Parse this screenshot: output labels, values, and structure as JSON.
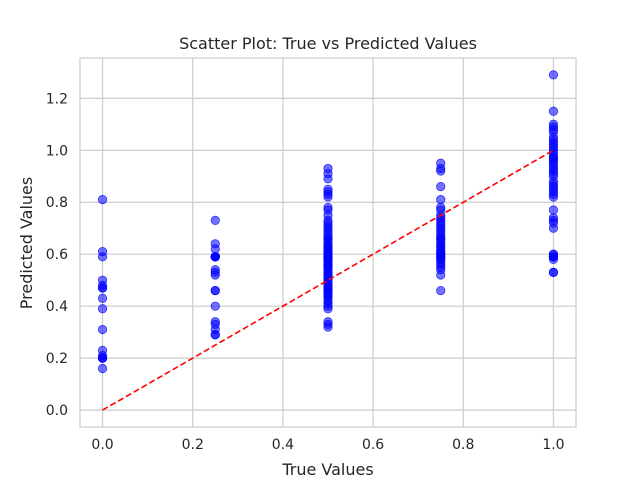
{
  "chart_data": {
    "type": "scatter",
    "title": "Scatter Plot: True vs Predicted Values",
    "xlabel": "True Values",
    "ylabel": "Predicted Values",
    "xlim": [
      -0.05,
      1.05
    ],
    "ylim": [
      -0.065,
      1.355
    ],
    "xticks": [
      0.0,
      0.2,
      0.4,
      0.6,
      0.8,
      1.0
    ],
    "yticks": [
      0.0,
      0.2,
      0.4,
      0.6,
      0.8,
      1.0,
      1.2
    ],
    "xtick_labels": [
      "0.0",
      "0.2",
      "0.4",
      "0.6",
      "0.8",
      "1.0"
    ],
    "ytick_labels": [
      "0.0",
      "0.2",
      "0.4",
      "0.6",
      "0.8",
      "1.0",
      "1.2"
    ],
    "grid": true,
    "point_color": "#0000ff",
    "point_alpha": 0.55,
    "line_color": "#ff0000",
    "reference_line": {
      "style": "dashed",
      "x": [
        0,
        1
      ],
      "y": [
        0,
        1
      ]
    },
    "points": {
      "x": [
        0,
        0,
        0,
        0,
        0,
        0,
        0,
        0,
        0,
        0,
        0,
        0,
        0,
        0,
        0,
        0,
        0.25,
        0.25,
        0.25,
        0.25,
        0.25,
        0.25,
        0.25,
        0.25,
        0.25,
        0.25,
        0.25,
        0.25,
        0.25,
        0.25,
        0.25,
        0.25,
        0.25,
        0.25,
        0.25,
        0.25,
        0.5,
        0.5,
        0.5,
        0.5,
        0.5,
        0.5,
        0.5,
        0.5,
        0.5,
        0.5,
        0.5,
        0.5,
        0.5,
        0.5,
        0.5,
        0.5,
        0.5,
        0.5,
        0.5,
        0.5,
        0.5,
        0.5,
        0.5,
        0.5,
        0.5,
        0.5,
        0.5,
        0.5,
        0.5,
        0.5,
        0.5,
        0.5,
        0.5,
        0.5,
        0.5,
        0.5,
        0.5,
        0.5,
        0.5,
        0.5,
        0.5,
        0.5,
        0.5,
        0.5,
        0.5,
        0.5,
        0.5,
        0.5,
        0.5,
        0.5,
        0.5,
        0.5,
        0.5,
        0.5,
        0.5,
        0.5,
        0.5,
        0.5,
        0.5,
        0.5,
        0.5,
        0.5,
        0.5,
        0.5,
        0.5,
        0.5,
        0.75,
        0.75,
        0.75,
        0.75,
        0.75,
        0.75,
        0.75,
        0.75,
        0.75,
        0.75,
        0.75,
        0.75,
        0.75,
        0.75,
        0.75,
        0.75,
        0.75,
        0.75,
        0.75,
        0.75,
        0.75,
        0.75,
        0.75,
        0.75,
        0.75,
        0.75,
        0.75,
        0.75,
        0.75,
        0.75,
        0.75,
        0.75,
        0.75,
        0.75,
        0.75,
        0.75,
        0.75,
        1,
        1,
        1,
        1,
        1,
        1,
        1,
        1,
        1,
        1,
        1,
        1,
        1,
        1,
        1,
        1,
        1,
        1,
        1,
        1,
        1,
        1,
        1,
        1,
        1,
        1,
        1,
        1,
        1,
        1,
        1,
        1,
        1,
        1,
        1,
        1,
        1,
        1,
        1,
        1,
        1,
        1,
        1,
        1
      ],
      "y": [
        0.81,
        0.61,
        0.59,
        0.5,
        0.48,
        0.47,
        0.43,
        0.39,
        0.31,
        0.23,
        0.21,
        0.2,
        0.2,
        0.16,
        0.2,
        0.47,
        0.73,
        0.64,
        0.62,
        0.59,
        0.59,
        0.59,
        0.59,
        0.54,
        0.53,
        0.52,
        0.46,
        0.46,
        0.4,
        0.34,
        0.33,
        0.31,
        0.29,
        0.29,
        0.59,
        0.59,
        0.93,
        0.91,
        0.89,
        0.85,
        0.84,
        0.83,
        0.82,
        0.78,
        0.77,
        0.75,
        0.73,
        0.72,
        0.7,
        0.69,
        0.68,
        0.67,
        0.66,
        0.65,
        0.64,
        0.63,
        0.62,
        0.61,
        0.6,
        0.59,
        0.58,
        0.57,
        0.56,
        0.55,
        0.54,
        0.53,
        0.52,
        0.51,
        0.5,
        0.49,
        0.48,
        0.47,
        0.46,
        0.45,
        0.44,
        0.43,
        0.42,
        0.41,
        0.4,
        0.39,
        0.34,
        0.33,
        0.32,
        0.59,
        0.59,
        0.6,
        0.57,
        0.58,
        0.55,
        0.61,
        0.62,
        0.5,
        0.52,
        0.48,
        0.44,
        0.46,
        0.63,
        0.66,
        0.71,
        0.56,
        0.53,
        0.47,
        0.95,
        0.93,
        0.92,
        0.86,
        0.81,
        0.78,
        0.77,
        0.75,
        0.74,
        0.73,
        0.72,
        0.71,
        0.7,
        0.69,
        0.68,
        0.67,
        0.66,
        0.65,
        0.64,
        0.63,
        0.62,
        0.61,
        0.6,
        0.59,
        0.58,
        0.57,
        0.56,
        0.55,
        0.54,
        0.52,
        0.46,
        0.59,
        0.6,
        0.58,
        0.61,
        0.63,
        0.66,
        1.29,
        1.15,
        1.1,
        1.09,
        1.08,
        1.07,
        1.05,
        1.03,
        1.02,
        1.01,
        1.0,
        0.99,
        0.98,
        0.97,
        0.96,
        0.95,
        0.94,
        0.93,
        0.91,
        0.9,
        0.88,
        0.86,
        0.85,
        0.84,
        0.83,
        0.82,
        0.77,
        0.74,
        0.73,
        0.72,
        0.7,
        0.6,
        0.59,
        0.59,
        0.58,
        0.53,
        0.53,
        1.04,
        0.97,
        0.92,
        0.87,
        0.59,
        0.59,
        0.6
      ]
    }
  }
}
